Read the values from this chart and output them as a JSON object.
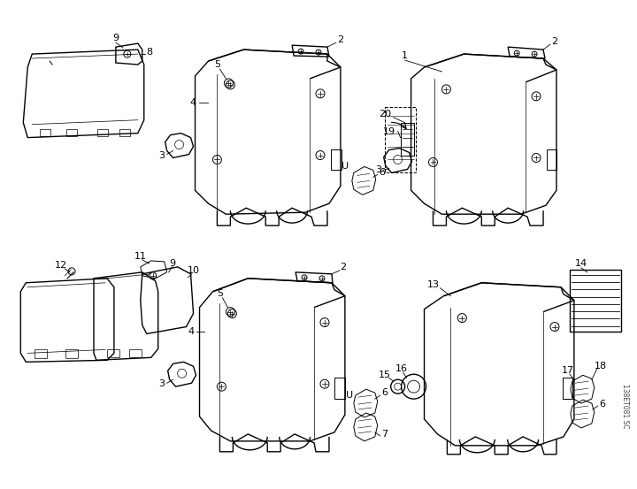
{
  "background_color": "#ffffff",
  "fig_width": 7.2,
  "fig_height": 5.53,
  "dpi": 100,
  "watermark_text": "138ET081 SC",
  "line_color": "#000000",
  "label_fontsize": 8,
  "label_color": "#000000"
}
